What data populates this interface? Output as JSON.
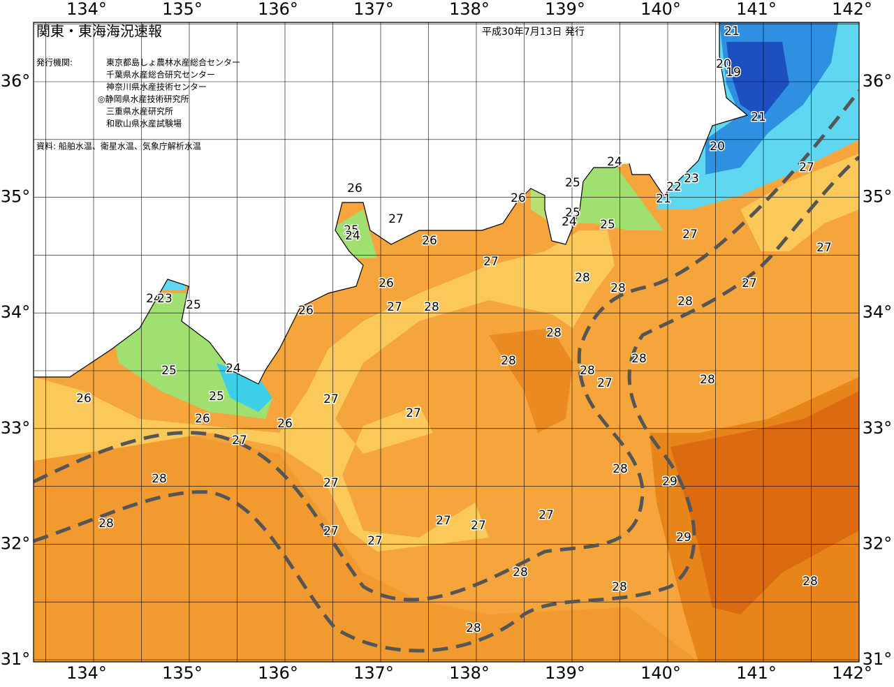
{
  "map": {
    "title": "関東・東海海況速報",
    "date": "平成30年7月13日 発行",
    "issuer_label": "発行機関:",
    "issuers": [
      "東京都島しょ農林水産総合センター",
      "千葉県水産総合研究センター",
      "神奈川県水産技術センター",
      "◎静岡県水産技術研究所",
      "三重県水産研究所",
      "和歌山県水産試験場"
    ],
    "source": "資料: 船舶水温、衛星水温、気象庁解析水温",
    "lon_labels": [
      "134°",
      "135°",
      "136°",
      "137°",
      "138°",
      "139°",
      "140°",
      "141°",
      "142°"
    ],
    "lat_labels": [
      "36°",
      "35°",
      "34°",
      "33°",
      "32°",
      "31°"
    ],
    "isotherm_labels": [
      21,
      20,
      19,
      21,
      20,
      24,
      25,
      22,
      23,
      21,
      25,
      24,
      25,
      26,
      26,
      27,
      25,
      24,
      26,
      27,
      27,
      27,
      27,
      28,
      28,
      27,
      26,
      24,
      23,
      25,
      26,
      27,
      28,
      28,
      28,
      28,
      28,
      28,
      27,
      28,
      24,
      25,
      26,
      25,
      27,
      27,
      26,
      26,
      27,
      28,
      29,
      28,
      27,
      28,
      27,
      27,
      27,
      27,
      27,
      29,
      28,
      28,
      28,
      28
    ]
  }
}
